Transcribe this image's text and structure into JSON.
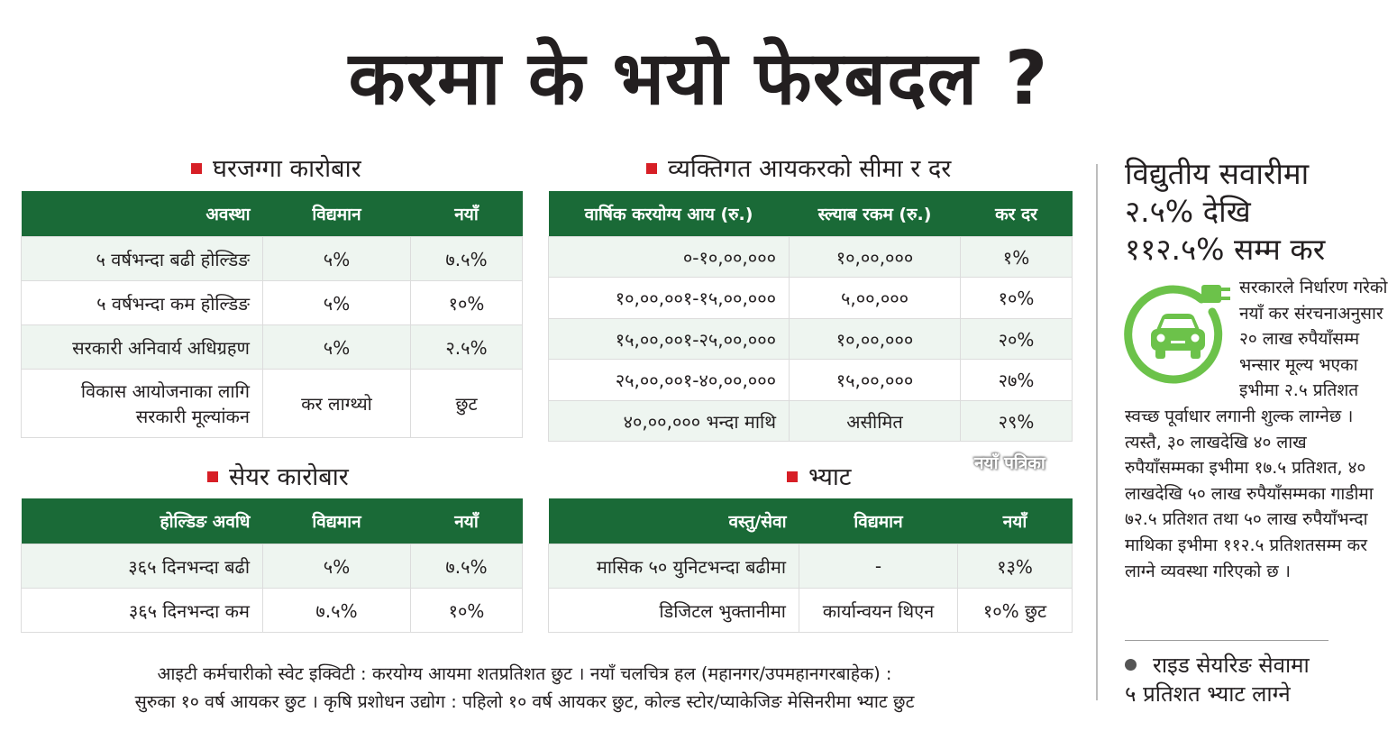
{
  "title": "करमा के भयो फेरबदल ?",
  "colors": {
    "header_green": "#1a6a37",
    "row_tint": "#eef5f0",
    "bullet_red": "#d71f26",
    "icon_green": "#6cc24a"
  },
  "real_estate": {
    "heading": "घरजग्गा कारोबार",
    "columns": [
      "अवस्था",
      "विद्यमान",
      "नयाँ"
    ],
    "rows": [
      [
        "५ वर्षभन्दा बढी होल्डिङ",
        "५%",
        "७.५%"
      ],
      [
        "५ वर्षभन्दा कम होल्डिङ",
        "५%",
        "१०%"
      ],
      [
        "सरकारी अनिवार्य अधिग्रहण",
        "५%",
        "२.५%"
      ]
    ],
    "last_row": {
      "line1": "विकास आयोजनाका लागि",
      "line2": "सरकारी मूल्यांकन",
      "existing": "कर लाग्थ्यो",
      "new": "छुट"
    }
  },
  "income_tax": {
    "heading": "व्यक्तिगत आयकरको सीमा र दर",
    "columns": [
      "वार्षिक करयोग्य आय (रु.)",
      "स्ल्याब रकम (रु.)",
      "कर दर"
    ],
    "rows": [
      [
        "०-१०,००,०००",
        "१०,००,०००",
        "१%"
      ],
      [
        "१०,००,००१-१५,००,०००",
        "५,००,०००",
        "१०%"
      ],
      [
        "१५,००,००१-२५,००,०००",
        "१०,००,०००",
        "२०%"
      ],
      [
        "२५,००,००१-४०,००,०००",
        "१५,००,०००",
        "२७%"
      ],
      [
        "४०,००,००० भन्दा माथि",
        "असीमित",
        "२९%"
      ]
    ]
  },
  "shares": {
    "heading": "सेयर कारोबार",
    "columns": [
      "होल्डिङ अवधि",
      "विद्यमान",
      "नयाँ"
    ],
    "rows": [
      [
        "३६५ दिनभन्दा बढी",
        "५%",
        "७.५%"
      ],
      [
        "३६५ दिनभन्दा कम",
        "७.५%",
        "१०%"
      ]
    ]
  },
  "vat": {
    "heading": "भ्याट",
    "columns": [
      "वस्तु/सेवा",
      "विद्यमान",
      "नयाँ"
    ],
    "rows": [
      [
        "मासिक ५० युनिटभन्दा बढीमा",
        "-",
        "१३%"
      ],
      [
        "डिजिटल भुक्तानीमा",
        "कार्यान्वयन थिएन",
        "१०% छुट"
      ]
    ]
  },
  "credit": "नयाँ पत्रिका",
  "sidebar": {
    "heading": [
      "विद्युतीय सवारीमा",
      "२.५% देखि",
      "११२.५% सम्म कर"
    ],
    "icon": "electric-car-plug-icon",
    "body": "सरकारले निर्धारण गरेको नयाँ कर संरचनाअनुसार २० लाख रुपैयाँसम्म भन्सार मूल्य भएका इभीमा २.५ प्रतिशत स्वच्छ पूर्वाधार लगानी शुल्क लाग्नेछ । त्यस्तै, ३० लाखदेखि ४० लाख रुपैयाँसम्मका इभीमा १७.५ प्रतिशत, ४० लाखदेखि ५० लाख रुपैयाँसम्मका गाडीमा ७२.५ प्रतिशत तथा ५० लाख रुपैयाँभन्दा माथिका इभीमा ११२.५ प्रतिशतसम्म कर लाग्ने व्यवस्था गरिएको छ ।",
    "ride_line1": "राइड सेयरिङ सेवामा",
    "ride_line2": "५ प्रतिशत भ्याट लाग्ने"
  },
  "footer": {
    "line1": "आइटी कर्मचारीको स्वेट इक्विटी : करयोग्य आयमा शतप्रतिशत छुट । नयाँ चलचित्र हल (महानगर/उपमहानगरबाहेक) :",
    "line2": "सुरुका १० वर्ष आयकर छुट । कृषि प्रशोधन उद्योग : पहिलो १० वर्ष आयकर छुट, कोल्ड स्टोर/प्याकेजिङ मेसिनरीमा भ्याट छुट"
  }
}
